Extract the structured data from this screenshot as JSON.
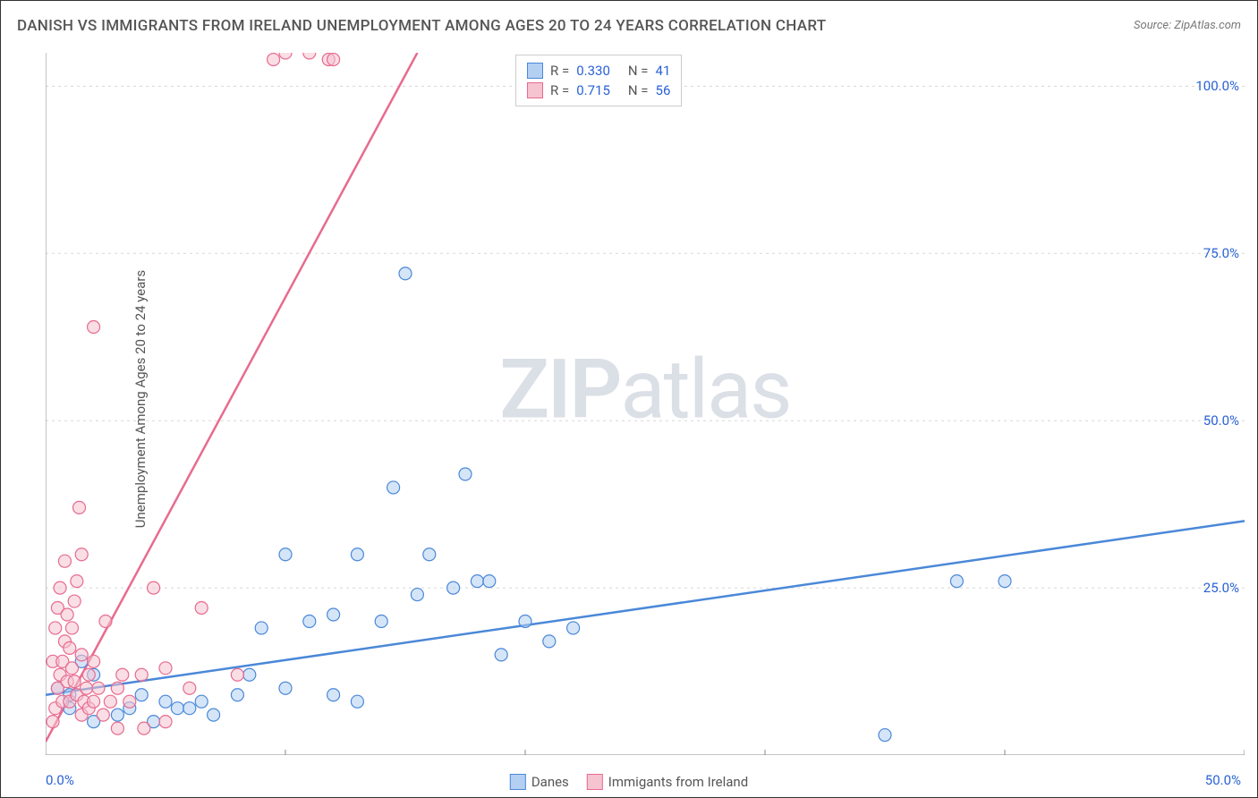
{
  "title": "DANISH VS IMMIGRANTS FROM IRELAND UNEMPLOYMENT AMONG AGES 20 TO 24 YEARS CORRELATION CHART",
  "source": "Source: ZipAtlas.com",
  "y_label": "Unemployment Among Ages 20 to 24 years",
  "watermark_bold": "ZIP",
  "watermark_light": "atlas",
  "chart": {
    "type": "scatter-with-regression",
    "xlim": [
      0,
      50
    ],
    "ylim": [
      0,
      105
    ],
    "x_origin": "0.0%",
    "x_max": "50.0%",
    "y_ticks": [
      25,
      50,
      75,
      100
    ],
    "y_tick_labels": [
      "25.0%",
      "50.0%",
      "75.0%",
      "100.0%"
    ],
    "x_grid_ticks": [
      10,
      20,
      30,
      40,
      50
    ],
    "background_color": "#ffffff",
    "grid_color": "#d8d8d8",
    "marker_radius": 7,
    "marker_stroke_width": 1.2,
    "line_width": 2.5,
    "series": [
      {
        "name": "Danes",
        "fill": "#b3d0f2",
        "stroke": "#4a88d8",
        "fill_opacity": 0.55,
        "R": "0.330",
        "N": "41",
        "regression": {
          "x1": 0,
          "y1": 9,
          "x2": 50,
          "y2": 35
        },
        "points": [
          [
            0.5,
            10
          ],
          [
            1,
            9
          ],
          [
            1,
            7
          ],
          [
            1.5,
            14
          ],
          [
            2,
            5
          ],
          [
            2,
            12
          ],
          [
            3,
            6
          ],
          [
            3.5,
            7
          ],
          [
            4,
            9
          ],
          [
            4.5,
            5
          ],
          [
            5,
            8
          ],
          [
            5.5,
            7
          ],
          [
            6,
            7
          ],
          [
            6.5,
            8
          ],
          [
            7,
            6
          ],
          [
            8,
            9
          ],
          [
            8.5,
            12
          ],
          [
            9,
            19
          ],
          [
            10,
            10
          ],
          [
            10,
            30
          ],
          [
            11,
            20
          ],
          [
            12,
            9
          ],
          [
            12,
            21
          ],
          [
            13,
            8
          ],
          [
            13,
            30
          ],
          [
            14,
            20
          ],
          [
            14.5,
            40
          ],
          [
            15,
            72
          ],
          [
            15.5,
            24
          ],
          [
            16,
            30
          ],
          [
            17,
            25
          ],
          [
            17.5,
            42
          ],
          [
            18,
            26
          ],
          [
            18.5,
            26
          ],
          [
            19,
            15
          ],
          [
            20,
            20
          ],
          [
            21,
            17
          ],
          [
            22,
            19
          ],
          [
            35,
            3
          ],
          [
            38,
            26
          ],
          [
            40,
            26
          ]
        ]
      },
      {
        "name": "Immigants from Ireland",
        "fill": "#f6c3d0",
        "stroke": "#e76b8f",
        "fill_opacity": 0.55,
        "R": "0.715",
        "N": "56",
        "regression": {
          "x1": 0,
          "y1": 2,
          "x2": 15.5,
          "y2": 105
        },
        "points": [
          [
            0.3,
            5
          ],
          [
            0.3,
            14
          ],
          [
            0.4,
            7
          ],
          [
            0.4,
            19
          ],
          [
            0.5,
            10
          ],
          [
            0.5,
            22
          ],
          [
            0.6,
            12
          ],
          [
            0.6,
            25
          ],
          [
            0.7,
            8
          ],
          [
            0.7,
            14
          ],
          [
            0.8,
            17
          ],
          [
            0.8,
            29
          ],
          [
            0.9,
            11
          ],
          [
            0.9,
            21
          ],
          [
            1,
            8
          ],
          [
            1,
            16
          ],
          [
            1.1,
            13
          ],
          [
            1.1,
            19
          ],
          [
            1.2,
            11
          ],
          [
            1.2,
            23
          ],
          [
            1.3,
            9
          ],
          [
            1.3,
            26
          ],
          [
            1.4,
            37
          ],
          [
            1.5,
            6
          ],
          [
            1.5,
            15
          ],
          [
            1.5,
            30
          ],
          [
            1.6,
            8
          ],
          [
            1.7,
            10
          ],
          [
            1.8,
            7
          ],
          [
            1.8,
            12
          ],
          [
            2,
            8
          ],
          [
            2,
            14
          ],
          [
            2,
            64
          ],
          [
            2.2,
            10
          ],
          [
            2.4,
            6
          ],
          [
            2.5,
            20
          ],
          [
            2.7,
            8
          ],
          [
            3,
            10
          ],
          [
            3,
            4
          ],
          [
            3.2,
            12
          ],
          [
            3.5,
            8
          ],
          [
            4,
            12
          ],
          [
            4,
            -1
          ],
          [
            4.1,
            4
          ],
          [
            4.5,
            25
          ],
          [
            5,
            5
          ],
          [
            5,
            13
          ],
          [
            5.5,
            -2
          ],
          [
            6,
            10
          ],
          [
            6.5,
            22
          ],
          [
            8,
            12
          ],
          [
            10,
            105
          ],
          [
            11,
            105
          ],
          [
            9.5,
            104
          ],
          [
            11.8,
            104
          ],
          [
            12,
            104
          ]
        ]
      }
    ]
  },
  "legend_bottom": {
    "series1_label": "Danes",
    "series2_label": "Immigants from Ireland"
  }
}
